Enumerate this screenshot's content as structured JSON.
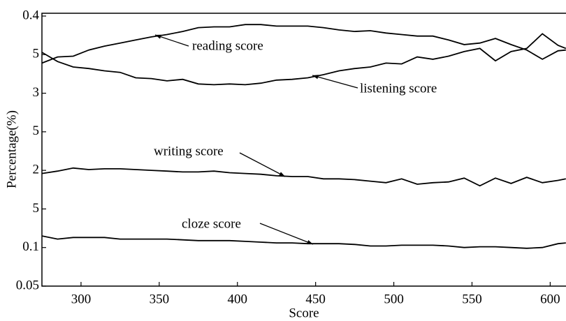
{
  "chart_data": {
    "type": "line",
    "xlabel": "Score",
    "ylabel": "Percentage(%)",
    "x": [
      275,
      285,
      295,
      305,
      315,
      325,
      335,
      345,
      355,
      365,
      375,
      385,
      395,
      405,
      415,
      425,
      435,
      445,
      455,
      465,
      475,
      485,
      495,
      505,
      515,
      525,
      535,
      545,
      555,
      565,
      575,
      585,
      595,
      605,
      610
    ],
    "series": [
      {
        "name": "reading score",
        "color": "#000000",
        "values": [
          0.339,
          0.347,
          0.348,
          0.356,
          0.361,
          0.365,
          0.369,
          0.373,
          0.376,
          0.38,
          0.385,
          0.386,
          0.386,
          0.389,
          0.389,
          0.387,
          0.387,
          0.387,
          0.385,
          0.382,
          0.38,
          0.381,
          0.378,
          0.376,
          0.374,
          0.374,
          0.369,
          0.363,
          0.365,
          0.371,
          0.363,
          0.356,
          0.344,
          0.355,
          0.356
        ]
      },
      {
        "name": "listening score",
        "color": "#000000",
        "values": [
          0.353,
          0.341,
          0.334,
          0.332,
          0.329,
          0.327,
          0.32,
          0.319,
          0.316,
          0.318,
          0.312,
          0.311,
          0.312,
          0.311,
          0.313,
          0.317,
          0.318,
          0.32,
          0.324,
          0.329,
          0.332,
          0.334,
          0.339,
          0.338,
          0.347,
          0.344,
          0.348,
          0.354,
          0.358,
          0.342,
          0.354,
          0.358,
          0.377,
          0.362,
          0.358
        ]
      },
      {
        "name": "writing score",
        "color": "#000000",
        "values": [
          0.196,
          0.199,
          0.203,
          0.201,
          0.202,
          0.202,
          0.201,
          0.2,
          0.199,
          0.198,
          0.198,
          0.199,
          0.197,
          0.196,
          0.195,
          0.193,
          0.192,
          0.192,
          0.189,
          0.189,
          0.188,
          0.186,
          0.184,
          0.189,
          0.182,
          0.184,
          0.185,
          0.19,
          0.18,
          0.19,
          0.183,
          0.191,
          0.184,
          0.187,
          0.189
        ]
      },
      {
        "name": "cloze score",
        "color": "#000000",
        "values": [
          0.115,
          0.111,
          0.113,
          0.113,
          0.113,
          0.111,
          0.111,
          0.111,
          0.111,
          0.11,
          0.109,
          0.109,
          0.109,
          0.108,
          0.107,
          0.106,
          0.106,
          0.105,
          0.105,
          0.105,
          0.104,
          0.102,
          0.102,
          0.103,
          0.103,
          0.103,
          0.102,
          0.1,
          0.101,
          0.101,
          0.1,
          0.099,
          0.1,
          0.105,
          0.106
        ]
      }
    ],
    "xlim": [
      275,
      611
    ],
    "ylim": [
      0.05,
      0.4
    ],
    "xticks": [
      300,
      350,
      400,
      450,
      500,
      550,
      600
    ],
    "yticks": [
      0.05,
      0.1,
      {
        "value": 0.15,
        "label": "5"
      },
      {
        "value": 0.2,
        "label": "2"
      },
      {
        "value": 0.25,
        "label": "5"
      },
      {
        "value": 0.3,
        "label": "3"
      },
      {
        "value": 0.35,
        "label": "5"
      },
      0.4
    ],
    "grid": false
  }
}
